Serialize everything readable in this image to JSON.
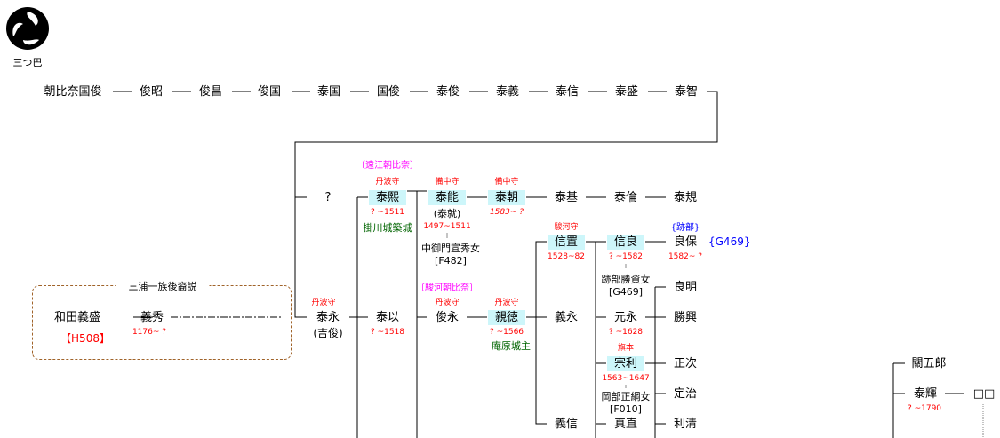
{
  "crest": {
    "label": "三つ巴",
    "icon": "mitsudomoe-crest-icon"
  },
  "colors": {
    "highlight": "#cdf6fa",
    "date": "#ff0000",
    "title": "#ff0000",
    "branch": "#ff00ff",
    "note": "#006400",
    "ref": "#0000ff"
  },
  "hypothesis": {
    "label": "三浦一族後裔説",
    "ref": "【H508】"
  },
  "nodes": {
    "kunitoshi0": "朝比奈国俊",
    "toshiaki": "俊昭",
    "toshimasa": "俊昌",
    "toshikuni": "俊国",
    "yasukuni": "泰国",
    "kunitoshi": "国俊",
    "yasutoshi": "泰俊",
    "yasuyoshi": "泰義",
    "yasunobu": "泰信",
    "yasumori": "泰盛",
    "yasutomo": "泰智",
    "unknown": "?",
    "yasuhiro": "泰熙",
    "yasuyoshi2": "泰能",
    "yasutomo2": "泰朝",
    "yasumoto": "泰基",
    "yasutomo3": "泰倫",
    "yasunori": "泰規",
    "wada": "和田義盛",
    "yoshihide": "義秀",
    "yasunaga": "泰永",
    "yasumochi": "泰以",
    "toshinaga": "俊永",
    "chikanori": "親徳",
    "nobuoki": "信置",
    "yoshinaga": "義永",
    "yoshinobu": "義信",
    "nobuyoshi": "信良",
    "motonaga": "元永",
    "munetoshi": "宗利",
    "sanenao": "真直",
    "yoshiyasu": "良保",
    "yoshiaki": "良明",
    "katsuoki": "勝興",
    "masatsugu": "正次",
    "sadaharu": "定治",
    "toshikiyo": "利清",
    "sekigoro": "關五郎",
    "yasuteru": "泰輝",
    "unknown2": "□□"
  },
  "alt_names": {
    "yasuyoshi2": "(泰就)",
    "yasunaga": "(吉俊)"
  },
  "titles": {
    "yasuhiro": "丹波守",
    "yasuyoshi2": "備中守",
    "yasutomo2": "備中守",
    "yasunaga": "丹波守",
    "toshinaga": "丹波守",
    "chikanori": "丹波守",
    "nobuoki": "駿河守",
    "munetoshi": "旗本"
  },
  "branches": {
    "totomi": "〔遠江朝比奈〕",
    "suruga": "〔駿河朝比奈〕",
    "atobe": "{跡部}"
  },
  "dates": {
    "yasuhiro": "? ~1511",
    "yasuyoshi2": "1497~1511",
    "yasutomo2": "1583~ ?",
    "yoshihide": "1176~ ?",
    "yasumochi": "? ~1518",
    "chikanori": "? ~1566",
    "nobuoki": "1528~82",
    "nobuyoshi": "? ~1582",
    "yoshiyasu": "1582~ ?",
    "motonaga": "? ~1628",
    "munetoshi": "1563~1647",
    "yasuteru": "? ~1790"
  },
  "notes": {
    "yasuhiro": "掛川城築城",
    "chikanori": "庵原城主"
  },
  "spouses": {
    "yasuyoshi2": {
      "name": "中御門宣秀女",
      "ref": "[F482]"
    },
    "nobuyoshi": {
      "name": "跡部勝資女",
      "ref": "[G469]"
    },
    "munetoshi": {
      "name": "岡部正綱女",
      "ref": "[F010]"
    }
  },
  "refs": {
    "yoshiyasu": "{G469}"
  }
}
